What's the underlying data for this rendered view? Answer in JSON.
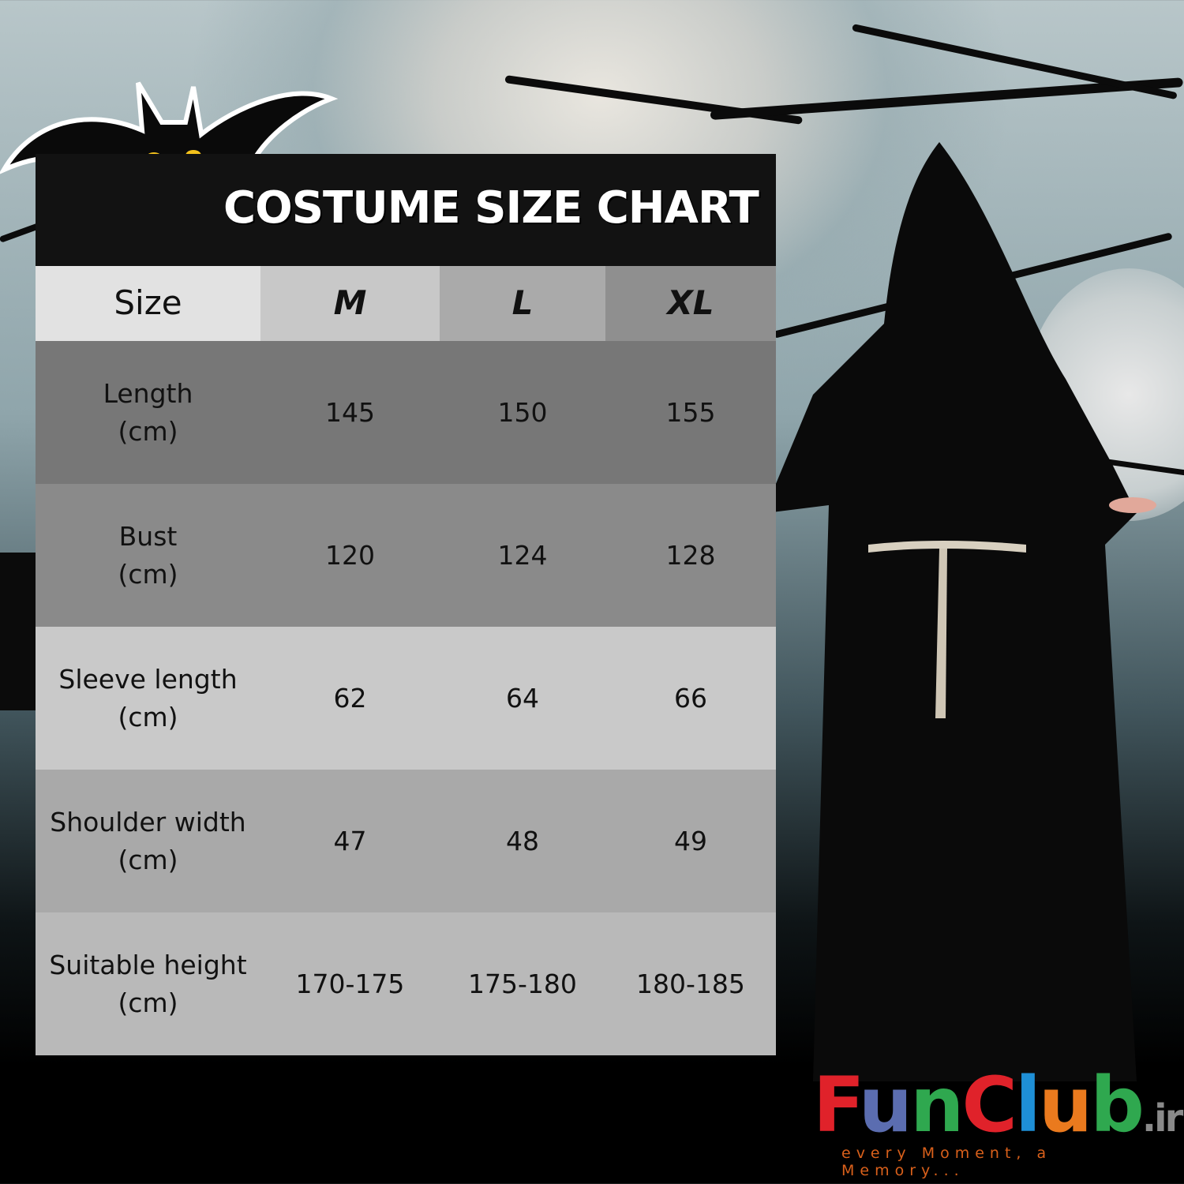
{
  "chart_title": "COSTUME SIZE CHART",
  "table": {
    "header": [
      "Size",
      "M",
      "L",
      "XL"
    ],
    "rows": [
      {
        "label": "Length",
        "unit": "(cm)",
        "values": [
          "145",
          "150",
          "155"
        ]
      },
      {
        "label": "Bust",
        "unit": "(cm)",
        "values": [
          "120",
          "124",
          "128"
        ]
      },
      {
        "label": "Sleeve length",
        "unit": "(cm)",
        "values": [
          "62",
          "64",
          "66"
        ]
      },
      {
        "label": "Shoulder width",
        "unit": "(cm)",
        "values": [
          "47",
          "48",
          "49"
        ]
      },
      {
        "label": "Suitable height",
        "unit": "(cm)",
        "values": [
          "170-175",
          "175-180",
          "180-185"
        ]
      }
    ]
  },
  "logo": {
    "letters": [
      "F",
      "u",
      "n",
      "C",
      "l",
      "u",
      "b"
    ],
    "letter_colors": [
      "#e0222a",
      "#5b6db0",
      "#2fa84f",
      "#e0222a",
      "#1e8fd6",
      "#ea7a1e",
      "#2fa84f"
    ],
    "suffix": ".ir",
    "tagline": "every Moment, a Memory..."
  },
  "colors": {
    "title_bar": "#121212",
    "header": [
      "#e2e2e2",
      "#c8c8c8",
      "#aaaaaa",
      "#8f8f8f"
    ],
    "rows": [
      "#777777",
      "#8a8a8a",
      "#c9c9c9",
      "#a9a9a9",
      "#b9b9b9"
    ]
  }
}
